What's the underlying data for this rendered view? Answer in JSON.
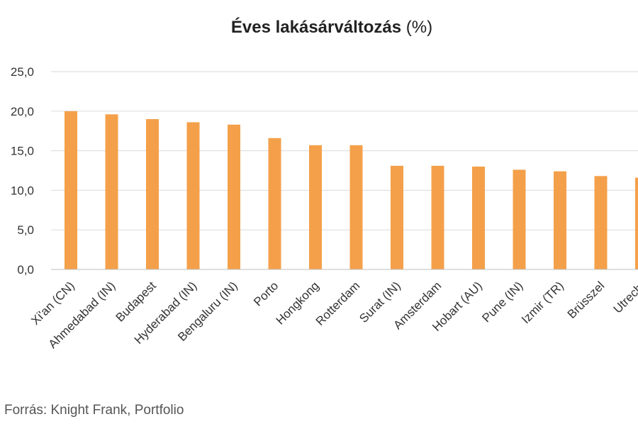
{
  "chart_data": {
    "type": "bar",
    "title": "Éves lakásárváltozás",
    "title_unit": "(%)",
    "xlabel": "",
    "ylabel": "",
    "ylim": [
      0,
      25
    ],
    "yticks": [
      "0,0",
      "5,0",
      "10,0",
      "15,0",
      "20,0",
      "25,0"
    ],
    "categories": [
      "Xi'an (CN)",
      "Ahmedabad (IN)",
      "Budapest",
      "Hyderabad (IN)",
      "Bengaluru (IN)",
      "Porto",
      "Hongkong",
      "Rotterdam",
      "Surat (IN)",
      "Amsterdam",
      "Hobart (AU)",
      "Pune (IN)",
      "Izmir (TR)",
      "Brüsszel",
      "Utrecht"
    ],
    "values": [
      20.0,
      19.6,
      19.0,
      18.6,
      18.3,
      16.6,
      15.7,
      15.7,
      13.1,
      13.1,
      13.0,
      12.6,
      12.4,
      11.8,
      11.6
    ],
    "bar_color": "#f4a04a",
    "grid": true,
    "legend": "none"
  },
  "source": "Forrás: Knight Frank, Portfolio"
}
